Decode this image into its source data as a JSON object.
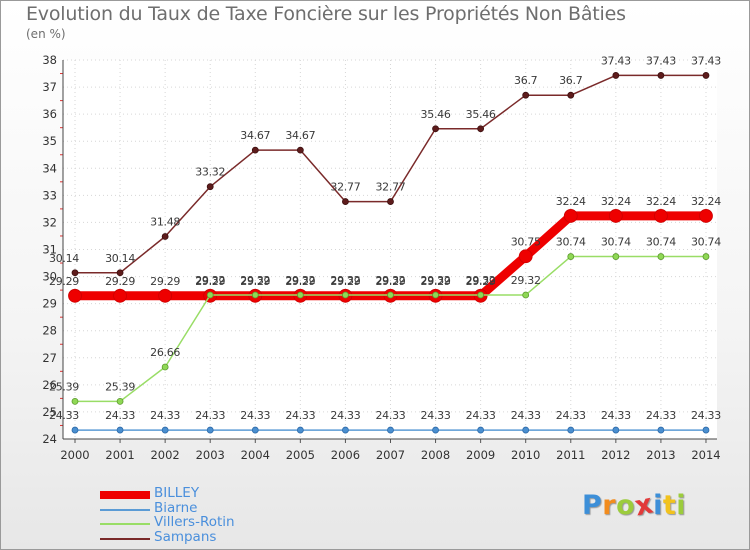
{
  "chart_data": {
    "type": "line",
    "title": "Evolution du Taux de Taxe Foncière sur les Propriétés Non Bâties",
    "subtitle": "(en %)",
    "xlabel": "",
    "ylabel": "",
    "x": [
      "2000",
      "2001",
      "2002",
      "2003",
      "2004",
      "2005",
      "2006",
      "2007",
      "2008",
      "2009",
      "2010",
      "2011",
      "2012",
      "2013",
      "2014"
    ],
    "ylim": [
      24,
      38
    ],
    "yticks": [
      "24",
      "25",
      "26",
      "27",
      "28",
      "29",
      "30",
      "31",
      "32",
      "33",
      "34",
      "35",
      "36",
      "37",
      "38"
    ],
    "grid": true,
    "legend_position": "bottom-left",
    "series": [
      {
        "name": "BILLEY",
        "color": "#ee0000",
        "values": [
          29.29,
          29.29,
          29.29,
          29.29,
          29.29,
          29.29,
          29.29,
          29.29,
          29.29,
          29.29,
          30.75,
          32.24,
          32.24,
          32.24,
          32.24
        ],
        "labels": [
          "29.29",
          "29.29",
          "29.29",
          "29.29",
          "29.29",
          "29.29",
          "29.29",
          "29.29",
          "29.29",
          "29.29",
          "30.75",
          "32.24",
          "32.24",
          "32.24",
          "32.24"
        ]
      },
      {
        "name": "Biarne",
        "color": "#5b9bd5",
        "values": [
          24.33,
          24.33,
          24.33,
          24.33,
          24.33,
          24.33,
          24.33,
          24.33,
          24.33,
          24.33,
          24.33,
          24.33,
          24.33,
          24.33,
          24.33
        ],
        "labels": [
          "24.33",
          "24.33",
          "24.33",
          "24.33",
          "24.33",
          "24.33",
          "24.33",
          "24.33",
          "24.33",
          "24.33",
          "24.33",
          "24.33",
          "24.33",
          "24.33",
          "24.33"
        ]
      },
      {
        "name": "Villers-Rotin",
        "color": "#99dd66",
        "values": [
          25.39,
          25.39,
          26.66,
          29.32,
          29.32,
          29.32,
          29.32,
          29.32,
          29.32,
          29.32,
          29.32,
          30.74,
          30.74,
          30.74,
          30.74
        ],
        "labels": [
          "25.39",
          "25.39",
          "26.66",
          "29.32",
          "29.32",
          "29.32",
          "29.32",
          "29.32",
          "29.32",
          "29.32",
          "29.32",
          "30.74",
          "30.74",
          "30.74",
          "30.74"
        ]
      },
      {
        "name": "Sampans",
        "color": "#7a2a2a",
        "values": [
          30.14,
          30.14,
          31.48,
          33.32,
          34.67,
          34.67,
          32.77,
          32.77,
          35.46,
          35.46,
          36.7,
          36.7,
          37.43,
          37.43,
          37.43
        ],
        "labels": [
          "30.14",
          "30.14",
          "31.48",
          "33.32",
          "34.67",
          "34.67",
          "32.77",
          "32.77",
          "35.46",
          "35.46",
          "36.7",
          "36.7",
          "37.43",
          "37.43",
          "37.43"
        ]
      }
    ]
  },
  "logo": {
    "letters": [
      "P",
      "r",
      "o",
      "x",
      "i",
      "t",
      "i"
    ],
    "colors": [
      "#3d8fd8",
      "#f28c1e",
      "#9ccc3c",
      "#e23a3a",
      "#3d8fd8",
      "#f2c21e",
      "#9ccc3c"
    ]
  }
}
